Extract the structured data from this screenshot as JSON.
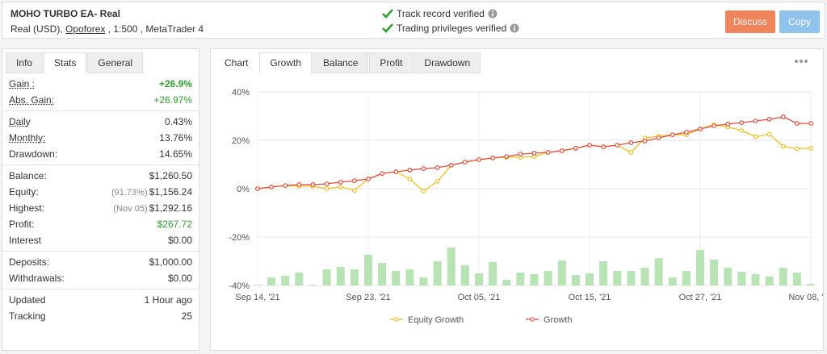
{
  "header": {
    "title": "MOHO TURBO EA- Real",
    "account": [
      "Real (USD), ",
      "Opoforex",
      " , 1:500 , MetaTrader 4"
    ],
    "verifications": [
      "Track record verified",
      "Trading privileges verified"
    ],
    "buttons": [
      {
        "label": "Discuss",
        "color": "#f0845b"
      },
      {
        "label": "Copy",
        "color": "#8fc3ec"
      }
    ]
  },
  "left_tabs": {
    "tabs": [
      "Info",
      "Stats",
      "General"
    ],
    "active": 1
  },
  "stats": {
    "groups": [
      {
        "rows": [
          {
            "label": "Gain :",
            "value": "+26.9%",
            "color": "#2ca02c",
            "bold": true,
            "underline": true
          },
          {
            "label": "Abs. Gain:",
            "value": "+26.97%",
            "color": "#2ca02c",
            "underline": true
          }
        ]
      },
      {
        "rows": [
          {
            "label": "Daily",
            "value": "0.43%",
            "underline": true
          },
          {
            "label": "Monthly:",
            "value": "13.76%",
            "underline": true
          },
          {
            "label": "Drawdown:",
            "value": "14.65%"
          }
        ]
      },
      {
        "rows": [
          {
            "label": "Balance:",
            "value": "$1,260.50"
          },
          {
            "label": "Equity:",
            "note": "(91.73%)",
            "value": "$1,156.24"
          },
          {
            "label": "Highest:",
            "note": "(Nov 05)",
            "value": "$1,292.16"
          },
          {
            "label": "Profit:",
            "value": "$267.72",
            "color": "#2ca02c"
          },
          {
            "label": "Interest",
            "value": "$0.00"
          }
        ]
      },
      {
        "rows": [
          {
            "label": "Deposits:",
            "value": "$1,000.00"
          },
          {
            "label": "Withdrawals:",
            "value": "$0.00"
          }
        ]
      },
      {
        "rows": [
          {
            "label": "Updated",
            "value": "1 Hour ago"
          },
          {
            "label": "Tracking",
            "value": "25"
          }
        ]
      }
    ]
  },
  "chart_tabs": {
    "label": "Chart",
    "tabs": [
      "Growth",
      "Balance",
      "Profit",
      "Drawdown"
    ],
    "active": 0
  },
  "chart_data": {
    "type": "line",
    "categories": [
      "Sep 14, '21",
      null,
      null,
      null,
      null,
      null,
      null,
      null,
      "Sep 23, '21",
      null,
      null,
      null,
      null,
      null,
      null,
      null,
      "Oct 05, '21",
      null,
      null,
      null,
      null,
      null,
      null,
      null,
      "Oct 15, '21",
      null,
      null,
      null,
      null,
      null,
      null,
      null,
      "Oct 27, '21",
      null,
      null,
      null,
      null,
      null,
      null,
      null,
      "Nov 08, '21"
    ],
    "series": [
      {
        "name": "Equity Growth",
        "color": "#f2be1d",
        "values": [
          0,
          0.7,
          1.3,
          1,
          1,
          0,
          0.7,
          -0.7,
          4,
          6.3,
          7,
          4,
          -1,
          3,
          9.7,
          11,
          12,
          12.7,
          13,
          13,
          13.3,
          15,
          15.7,
          16.7,
          18,
          17.3,
          18,
          15,
          21,
          21.7,
          22.3,
          22.3,
          24.7,
          26.5,
          25.5,
          24,
          21.5,
          22.5,
          17.5,
          16.5,
          16.7
        ]
      },
      {
        "name": "Growth",
        "color": "#e64a3b",
        "values": [
          0,
          0.7,
          1.3,
          1.7,
          1.7,
          2,
          2.7,
          3.3,
          4,
          6.3,
          7,
          7.7,
          8.3,
          8.7,
          9.7,
          11,
          12,
          12.7,
          13.3,
          14.3,
          14.7,
          15,
          15.7,
          16.7,
          18,
          17.3,
          18,
          19,
          19.7,
          21,
          22.3,
          23.3,
          24.7,
          26,
          26.7,
          27.3,
          28,
          28.7,
          29.7,
          27,
          27
        ]
      }
    ],
    "bars": {
      "color": "#b8e3b4",
      "values": [
        0.3,
        3.3,
        4,
        5.3,
        0.3,
        6.7,
        7.7,
        6.7,
        12.7,
        9.3,
        6,
        6.7,
        3.3,
        10,
        15.7,
        8.3,
        5,
        9.7,
        2.3,
        5.3,
        4.7,
        6,
        10.3,
        4.3,
        5,
        10,
        6,
        6,
        7.3,
        11.3,
        3.3,
        6,
        14.7,
        10.7,
        7.3,
        5.7,
        4.7,
        3.7,
        7.3,
        5.3,
        0.7
      ]
    },
    "ylim": [
      -40,
      40
    ],
    "yticks": [
      {
        "value": 40,
        "label": "40%"
      },
      {
        "value": 20,
        "label": "20%"
      },
      {
        "value": 0,
        "label": "0%"
      },
      {
        "value": -20,
        "label": "-20%"
      },
      {
        "value": -40,
        "label": "-40%"
      }
    ],
    "grid": true
  }
}
